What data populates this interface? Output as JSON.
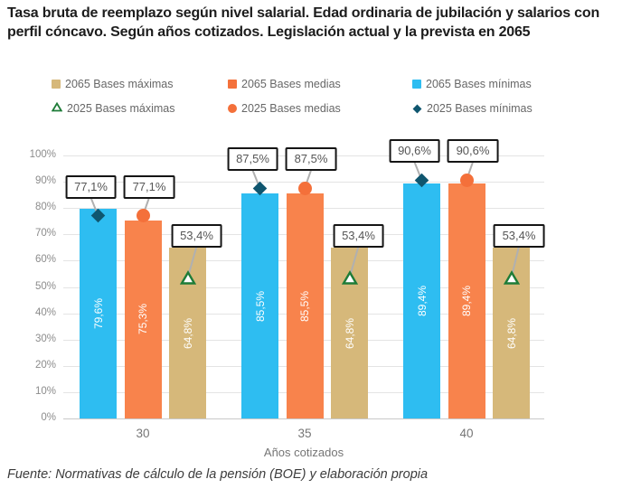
{
  "title": "Tasa bruta de reemplazo según nivel salarial. Edad ordinaria de jubilación y salarios con perfil cóncavo. Según años cotizados. Legislación actual y la prevista en 2065",
  "legend": {
    "items": [
      {
        "label": "2065 Bases máximas",
        "marker": "square",
        "color": "#d6b87a"
      },
      {
        "label": "2065 Bases medias",
        "marker": "square",
        "color": "#f4713b"
      },
      {
        "label": "2065 Bases mínimas",
        "marker": "square",
        "color": "#2ebdf1"
      },
      {
        "label": "2025 Bases máximas",
        "marker": "triangle-open",
        "color": "#1e7c38"
      },
      {
        "label": "2025 Bases medias",
        "marker": "circle",
        "color": "#f4703a"
      },
      {
        "label": "2025 Bases mínimas",
        "marker": "diamond",
        "color": "#0f566f"
      }
    ]
  },
  "chart_data": {
    "type": "bar",
    "title": "Tasa bruta de reemplazo según nivel salarial. Edad ordinaria de jubilación y salarios con perfil cóncavo. Según años cotizados. Legislación actual y la prevista en 2065",
    "xlabel": "Años cotizados",
    "ylabel": "",
    "ylim": [
      0,
      100
    ],
    "ytick_step": 10,
    "ytick_suffix": "%",
    "grid": true,
    "legend_position": "top",
    "categories": [
      "30",
      "35",
      "40"
    ],
    "bar_series": [
      {
        "name": "2065 Bases mínimas",
        "color": "#2ebdf1",
        "values": [
          79.6,
          85.5,
          89.4
        ],
        "value_labels": [
          "79,6%",
          "85,5%",
          "89,4%"
        ]
      },
      {
        "name": "2065 Bases medias",
        "color": "#f8834c",
        "values": [
          75.3,
          85.5,
          89.4
        ],
        "value_labels": [
          "75,3%",
          "85,5%",
          "89,4%"
        ]
      },
      {
        "name": "2065 Bases máximas",
        "color": "#d6b87a",
        "values": [
          64.8,
          64.8,
          64.8
        ],
        "value_labels": [
          "64,8%",
          "64,8%",
          "64,8%"
        ]
      }
    ],
    "point_series": [
      {
        "name": "2025 Bases mínimas",
        "marker": "diamond",
        "color": "#0f566f",
        "values": [
          77.1,
          87.5,
          90.6
        ],
        "value_labels": [
          "77,1%",
          "87,5%",
          "90,6%"
        ]
      },
      {
        "name": "2025 Bases medias",
        "marker": "circle",
        "color": "#f4703a",
        "values": [
          77.1,
          87.5,
          90.6
        ],
        "value_labels": [
          "77,1%",
          "87,5%",
          "90,6%"
        ]
      },
      {
        "name": "2025 Bases máximas",
        "marker": "triangle-open",
        "color": "#1e7c38",
        "values": [
          53.4,
          53.4,
          53.4
        ],
        "value_labels": [
          "53,4%",
          "53,4%",
          "53,4%"
        ]
      }
    ]
  },
  "footer": "Fuente: Normativas de cálculo de la pensión (BOE) y elaboración propia"
}
